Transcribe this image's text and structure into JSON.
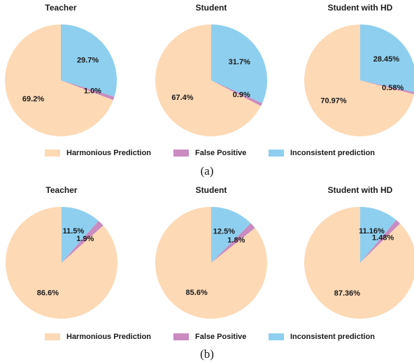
{
  "chart_data": [
    {
      "type": "pie",
      "title": "Teacher",
      "values": [
        29.7,
        1.0,
        69.2
      ],
      "value_labels": [
        "29.7%",
        "1.0%",
        "69.2%"
      ]
    },
    {
      "type": "pie",
      "title": "Student",
      "values": [
        31.7,
        0.9,
        67.4
      ],
      "value_labels": [
        "31.7%",
        "0.9%",
        "67.4%"
      ]
    },
    {
      "type": "pie",
      "title": "Student with HD",
      "values": [
        28.45,
        0.58,
        70.97
      ],
      "value_labels": [
        "28.45%",
        "0.58%",
        "70.97%"
      ]
    },
    {
      "type": "pie",
      "title": "Teacher",
      "values": [
        11.5,
        1.9,
        86.6
      ],
      "value_labels": [
        "11.5%",
        "1.9%",
        "86.6%"
      ]
    },
    {
      "type": "pie",
      "title": "Student",
      "values": [
        12.5,
        1.8,
        85.6
      ],
      "value_labels": [
        "12.5%",
        "1.8%",
        "85.6%"
      ]
    },
    {
      "type": "pie",
      "title": "Student with HD",
      "values": [
        11.16,
        1.48,
        87.36
      ],
      "value_labels": [
        "11.16%",
        "1.48%",
        "87.36%"
      ]
    }
  ],
  "legends": [
    {
      "entries": [
        {
          "name": "Inconsistent prediction",
          "color": "#8ecfef"
        },
        {
          "name": "False Positive",
          "color": "#c98bc0"
        },
        {
          "name": "Harmonious Prediction",
          "color": "#fdd9b5"
        }
      ]
    },
    {
      "entries": [
        {
          "name": "Inconsistent prediction",
          "color": "#8ecfef"
        },
        {
          "name": "False Positive",
          "color": "#c98bc0"
        },
        {
          "name": "Harmonious Prediction",
          "color": "#fdd9b5"
        }
      ]
    }
  ],
  "captions": [
    "(a)",
    "(b)"
  ]
}
